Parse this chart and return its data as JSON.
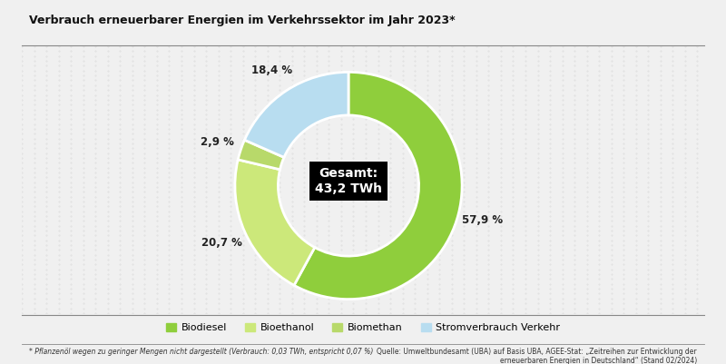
{
  "title": "Verbrauch erneuerbarer Energien im Verkehrssektor im Jahr 2023*",
  "slices": [
    57.9,
    20.7,
    2.9,
    18.4
  ],
  "labels": [
    "57,9 %",
    "20,7 %",
    "2,9 %",
    "18,4 %"
  ],
  "colors": [
    "#8fce3c",
    "#cce87a",
    "#b8d96a",
    "#b8ddf0"
  ],
  "legend_labels": [
    "Biodiesel",
    "Bioethanol",
    "Biomethan",
    "Stromverbrauch Verkehr"
  ],
  "center_text_line1": "Gesamt:",
  "center_text_line2": "43,2 TWh",
  "footnote": "* Pflanzenöl wegen zu geringer Mengen nicht dargestellt (Verbrauch: 0,03 TWh, entspricht 0,07 %)",
  "source": "Quelle: Umweltbundesamt (UBA) auf Basis UBA, AGEE-Stat: „Zeitreihen zur Entwicklung der\nerneuerbaren Energien in Deutschland“ (Stand 02/2024)",
  "outer_bg_color": "#f0f0f0",
  "chart_bg_color": "#e2e2e2",
  "startangle": 90,
  "donut_width": 0.38
}
